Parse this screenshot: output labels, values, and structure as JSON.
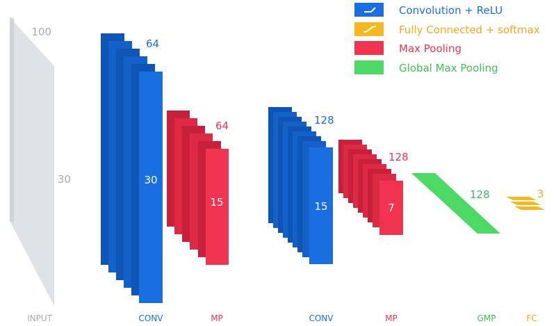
{
  "legend": [
    {
      "label": "Convolution + ReLU",
      "color": "#1a6fe0",
      "icon": "relu-curve-icon"
    },
    {
      "label": "Fully Connected + softmax",
      "color": "#f5a81c",
      "icon": "softmax-curve-icon"
    },
    {
      "label": "Max Pooling",
      "color": "#f0344f",
      "icon": "none"
    },
    {
      "label": "Global Max Pooling",
      "color": "#4cd964",
      "icon": "none"
    }
  ],
  "input": {
    "width_label": "100",
    "height_label": "30",
    "caption": "INPUT"
  },
  "conv1": {
    "filters": "64",
    "size": "30",
    "caption": "CONV"
  },
  "mp1": {
    "filters": "64",
    "size": "15",
    "caption": "MP"
  },
  "conv2": {
    "filters": "128",
    "size": "15",
    "caption": "CONV"
  },
  "mp2": {
    "filters": "128",
    "size": "7",
    "caption": "MP"
  },
  "gmp": {
    "units": "128",
    "caption": "GMP"
  },
  "fc": {
    "units": "3",
    "caption": "FC"
  },
  "colors": {
    "conv": "#1a6fe0",
    "conv_dark": "#0f55b8",
    "mp": "#f0344f",
    "mp_dark": "#c8203a",
    "gmp": "#4cd964",
    "fc": "#f5b820",
    "input": "#dfe2e7",
    "gray_text": "#a6abb3"
  }
}
